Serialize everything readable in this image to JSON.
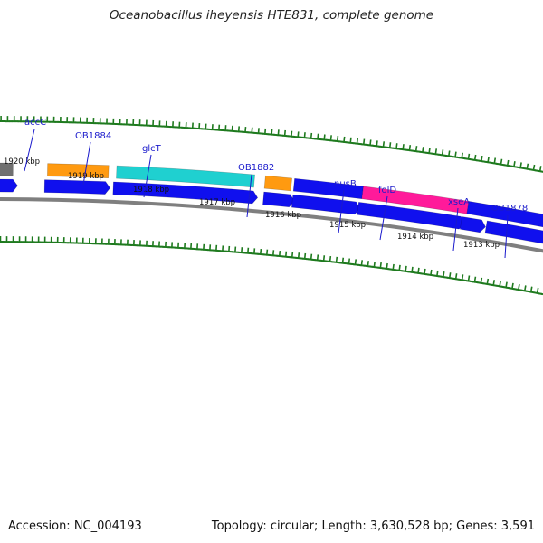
{
  "title": "Oceanobacillus iheyensis HTE831, complete genome",
  "footer": {
    "accession": "Accession: NC_004193",
    "topology": "Topology: circular; Length: 3,630,528 bp; Genes: 3,591"
  },
  "kbp_labels": [
    "1920 kbp",
    "1919 kbp",
    "1918 kbp",
    "1917 kbp",
    "1916 kbp",
    "1915 kbp",
    "1914 kbp",
    "1913 kbp"
  ],
  "gene_labels": [
    "accC",
    "OB1884",
    "glcT",
    "OB1882",
    "nusB",
    "folD",
    "xseA",
    "OB1878"
  ],
  "colors": {
    "cds": "#1010ee",
    "backbone": "#7f7f7f",
    "ticks": "#1e7a1e",
    "accC": "#6a5acd",
    "OB1884": "#707070",
    "glcT": "#ff9a10",
    "OB1882": "#1fd0d0",
    "nusB": "#ff9a10",
    "folD": "#1010ee",
    "xseA": "#ff1a9a",
    "OB1878": "#1010ee",
    "label": "#1a1acc"
  }
}
